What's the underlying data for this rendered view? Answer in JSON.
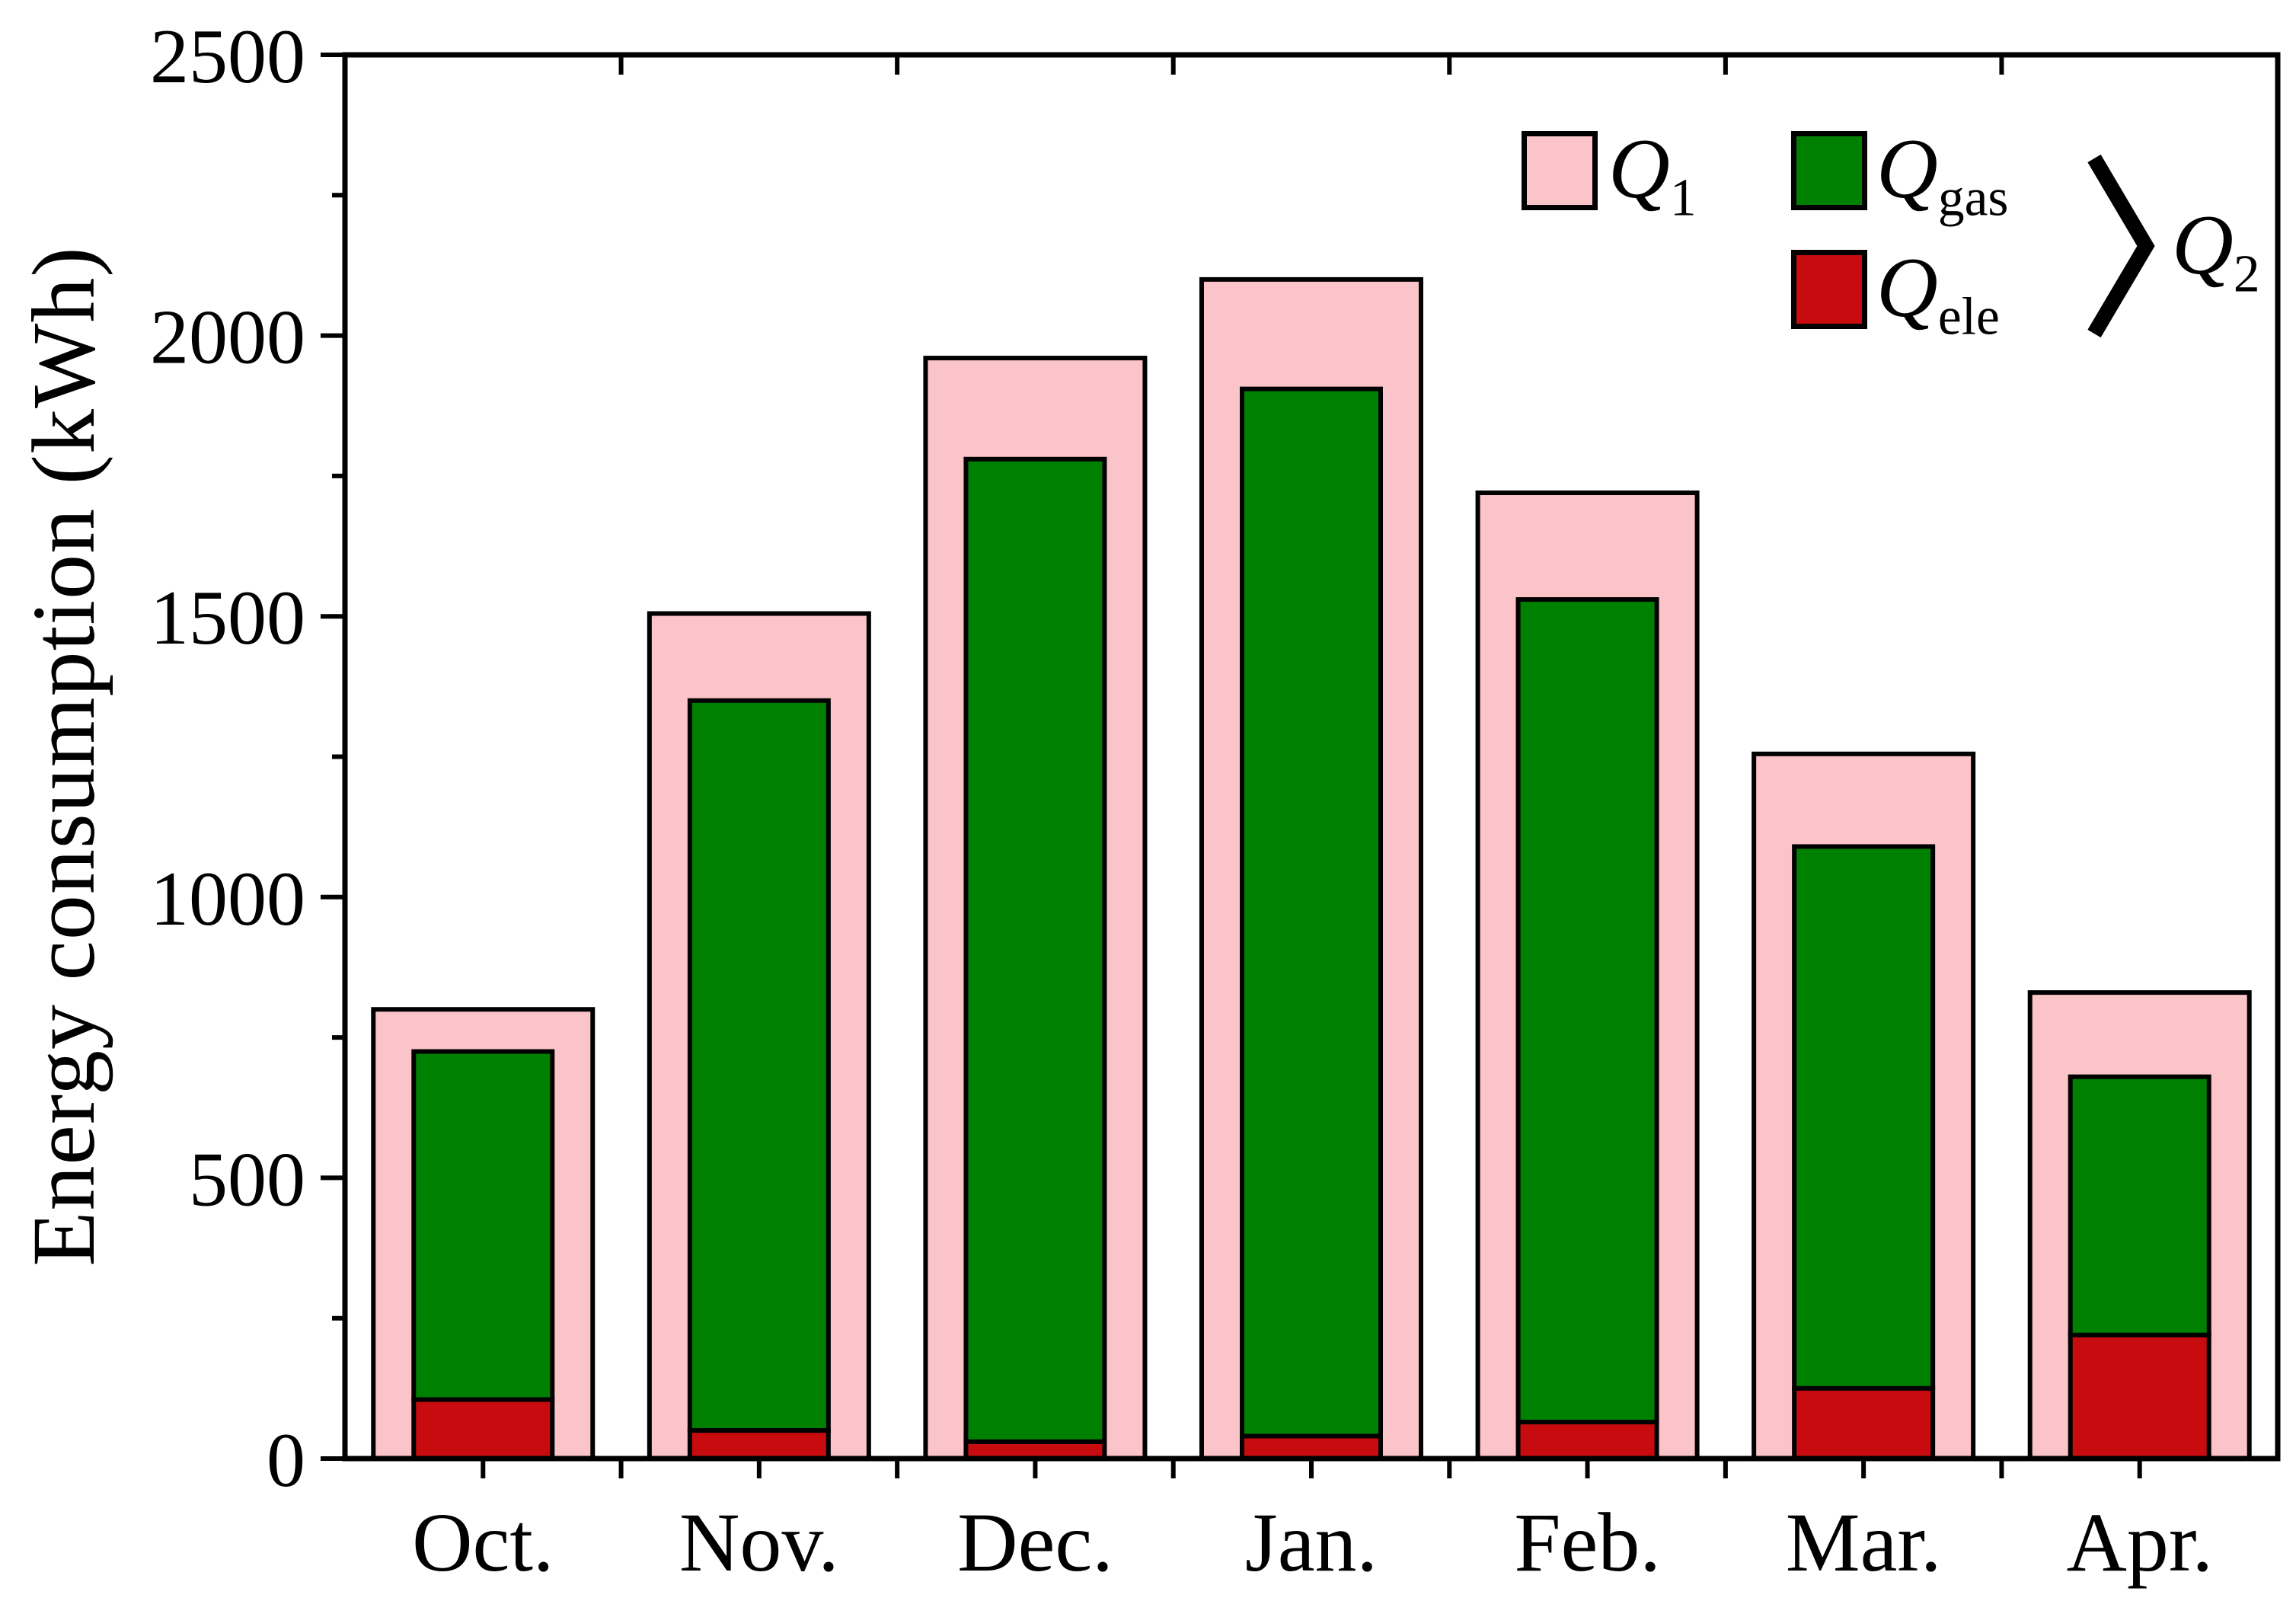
{
  "page": {
    "background": "#ffffff"
  },
  "chart_data": {
    "type": "bar",
    "title": "",
    "xlabel": "",
    "ylabel": "Energy consumption (kWh)",
    "categories": [
      "Oct.",
      "Nov.",
      "Dec.",
      "Jan.",
      "Feb.",
      "Mar.",
      "Apr."
    ],
    "series": [
      {
        "name": "Q1",
        "style": "outer-envelope",
        "color": "#fbc4c8",
        "edge": "#000000",
        "values": [
          800,
          1505,
          1960,
          2100,
          1720,
          1255,
          830
        ]
      },
      {
        "name": "Qele",
        "style": "stack-bottom",
        "color": "#c80b0f",
        "edge": "#000000",
        "values": [
          105,
          50,
          30,
          40,
          65,
          125,
          220
        ]
      },
      {
        "name": "Qgas",
        "style": "stack-top",
        "color": "#008000",
        "edge": "#000000",
        "values": [
          620,
          1300,
          1750,
          1865,
          1465,
          965,
          460
        ]
      }
    ],
    "q2_totals": [
      725,
      1350,
      1780,
      1905,
      1530,
      1090,
      680
    ],
    "ylim": [
      0,
      2500
    ],
    "y_major_step": 500,
    "y_minor_step": 250,
    "y_tick_labels": [
      "0",
      "500",
      "1000",
      "1500",
      "2000",
      "2500"
    ],
    "grid": false,
    "legend_position": "top-right",
    "axis_color": "#000000"
  },
  "legend": {
    "items": [
      {
        "sym": "Q",
        "sub": "1",
        "series": "Q1"
      },
      {
        "sym": "Q",
        "sub": "gas",
        "series": "Qgas"
      },
      {
        "sym": "Q",
        "sub": "ele",
        "series": "Qele"
      }
    ],
    "group": {
      "sym": "Q",
      "sub": "2"
    }
  }
}
